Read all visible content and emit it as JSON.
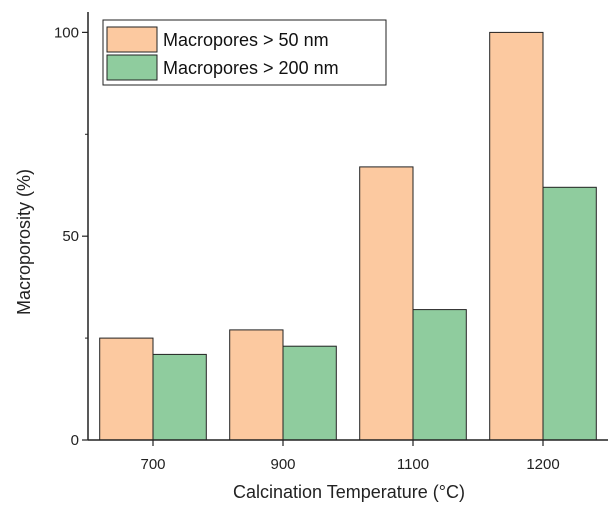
{
  "chart_data": {
    "type": "bar",
    "categories": [
      "700",
      "900",
      "1100",
      "1200"
    ],
    "series": [
      {
        "name": "Macropores > 50 nm",
        "values": [
          25,
          27,
          67,
          100
        ],
        "color": "#fcc9a0"
      },
      {
        "name": "Macropores > 200 nm",
        "values": [
          21,
          23,
          32,
          62
        ],
        "color": "#8fcc9e"
      }
    ],
    "xlabel": "Calcination Temperature (°C)",
    "ylabel": "Macroporosity (%)",
    "ylim": [
      0,
      105
    ],
    "yticks": [
      "0",
      "50",
      "100"
    ],
    "legend": "top-left",
    "grid": false
  }
}
